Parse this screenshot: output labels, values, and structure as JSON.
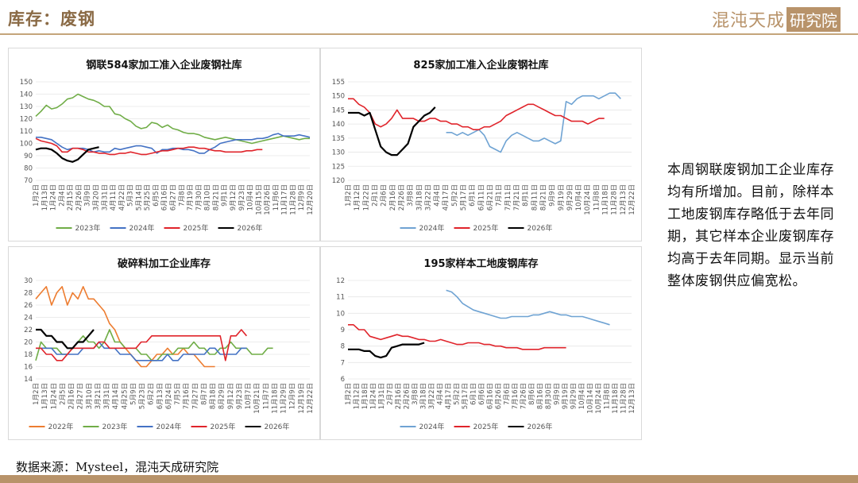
{
  "header": {
    "title": "库存：废钢",
    "logo_main": "混沌天成",
    "logo_box": "研究院"
  },
  "side_text": "本周钢联废钢加工企业库存均有所增加。目前，除样本工地废钢库存略低于去年同期，其它样本企业废钢库存均高于去年同期。显示当前整体废钢供应偏宽松。",
  "source": "数据来源：Mysteel，混沌天成研究院",
  "colors": {
    "accent": "#b8936a",
    "y2022": "#ed7d31",
    "y2023": "#70ad47",
    "y2024": "#4472c4",
    "y2025": "#e0242b",
    "y2026": "#000000",
    "blue_light": "#6fa3d3"
  },
  "chart_data": [
    {
      "type": "line",
      "title": "钢联584家加工准入企业废钢社库",
      "ylim": [
        70,
        150
      ],
      "yticks": [
        70,
        80,
        90,
        100,
        110,
        120,
        130,
        140,
        150
      ],
      "xticks": [
        "1月2日",
        "1月13日",
        "1月24日",
        "2月4日",
        "2月15日",
        "2月26日",
        "3月9日",
        "3月20日",
        "3月31日",
        "4月11日",
        "4月22日",
        "5月3日",
        "5月14日",
        "5月25日",
        "6月5日",
        "6月16日",
        "6月27日",
        "7月8日",
        "7月19日",
        "7月30日",
        "8月10日",
        "8月21日",
        "9月1日",
        "9月12日",
        "9月23日",
        "10月4日",
        "10月15日",
        "10月26日",
        "11月6日",
        "11月17日",
        "11月28日",
        "12月9日",
        "12月20日"
      ],
      "x_span": 53,
      "series": [
        {
          "name": "2023年",
          "color": "#70ad47",
          "values": [
            122,
            126,
            131,
            128,
            129,
            132,
            136,
            137,
            140,
            138,
            136,
            135,
            133,
            130,
            130,
            124,
            123,
            120,
            118,
            114,
            112,
            113,
            117,
            116,
            113,
            115,
            112,
            111,
            109,
            108,
            108,
            107,
            105,
            104,
            103,
            104,
            105,
            104,
            103,
            102,
            101,
            100,
            101,
            102,
            103,
            104,
            105,
            106,
            105,
            104,
            103,
            104,
            104
          ]
        },
        {
          "name": "2024年",
          "color": "#4472c4",
          "values": [
            105,
            105,
            104,
            103,
            100,
            97,
            95,
            96,
            96,
            96,
            95,
            93,
            94,
            93,
            93,
            96,
            95,
            96,
            97,
            98,
            98,
            97,
            96,
            92,
            95,
            95,
            96,
            96,
            95,
            95,
            94,
            92,
            92,
            95,
            97,
            100,
            101,
            102,
            103,
            103,
            103,
            103,
            104,
            104,
            105,
            107,
            108,
            106,
            106,
            106,
            107,
            106,
            105
          ]
        },
        {
          "name": "2025年",
          "color": "#e0242b",
          "values": [
            104,
            102,
            101,
            100,
            98,
            93,
            93,
            96,
            96,
            95,
            93,
            93,
            92,
            92,
            91,
            91,
            92,
            92,
            93,
            92,
            91,
            91,
            92,
            93,
            94,
            94,
            95,
            96,
            96,
            97,
            97,
            96,
            96,
            95,
            94,
            94,
            93,
            93,
            93,
            93,
            94,
            94,
            95,
            95
          ]
        },
        {
          "name": "2026年",
          "color": "#000000",
          "values": [
            95,
            96,
            96,
            95,
            92,
            88,
            86,
            85,
            87,
            91,
            95,
            96,
            97
          ]
        }
      ]
    },
    {
      "type": "line",
      "title": "825家加工准入企业废钢社库",
      "ylim": [
        120,
        155
      ],
      "yticks": [
        120,
        125,
        130,
        135,
        140,
        145,
        150,
        155
      ],
      "xticks": [
        "1月2日",
        "1月12日",
        "1月22日",
        "2月1日",
        "2月6日",
        "2月16日",
        "2月26日",
        "3月8日",
        "3月18日",
        "3月22日",
        "4月4日",
        "4月17日",
        "5月2日",
        "5月17日",
        "6月1日",
        "6月11日",
        "6月21日",
        "7月1日",
        "7月11日",
        "7月21日",
        "8月1日",
        "8月11日",
        "8月21日",
        "9月9日",
        "9月19日",
        "9月29日",
        "10月4日",
        "10月24日",
        "11月8日",
        "11月18日",
        "11月28日",
        "12月13日",
        "12月22日"
      ],
      "x_span": 53,
      "series": [
        {
          "name": "2024年",
          "color": "#6fa3d3",
          "values": [
            null,
            null,
            null,
            null,
            null,
            null,
            null,
            null,
            null,
            null,
            null,
            null,
            null,
            null,
            null,
            null,
            null,
            null,
            137,
            137,
            136,
            137,
            136,
            137,
            138,
            136,
            132,
            131,
            130,
            134,
            136,
            137,
            136,
            135,
            134,
            134,
            135,
            134,
            133,
            134,
            148,
            147,
            149,
            150,
            150,
            150,
            149,
            150,
            151,
            151,
            149
          ]
        },
        {
          "name": "2025年",
          "color": "#e0242b",
          "values": [
            149,
            149,
            147,
            146,
            144,
            140,
            139,
            140,
            142,
            145,
            142,
            142,
            142,
            141,
            141,
            142,
            142,
            141,
            141,
            140,
            140,
            139,
            139,
            138,
            138,
            139,
            139,
            140,
            141,
            143,
            144,
            145,
            146,
            147,
            147,
            146,
            145,
            144,
            143,
            143,
            142,
            141,
            141,
            141,
            140,
            141,
            142,
            142
          ]
        },
        {
          "name": "2026年",
          "color": "#000000",
          "values": [
            144,
            144,
            144,
            143,
            144,
            138,
            132,
            130,
            129,
            129,
            131,
            133,
            139,
            141,
            143,
            144,
            146
          ]
        }
      ]
    },
    {
      "type": "line",
      "title": "破碎料加工企业库存",
      "ylim": [
        14,
        30
      ],
      "yticks": [
        14,
        16,
        18,
        20,
        22,
        24,
        26,
        28,
        30
      ],
      "xticks": [
        "1月2日",
        "1月13日",
        "1月24日",
        "2月5日",
        "2月16日",
        "2月27日",
        "3月10日",
        "3月21日",
        "3月31日",
        "4月14日",
        "4月25日",
        "5月9日",
        "5月23日",
        "6月2日",
        "6月13日",
        "6月24日",
        "7月5日",
        "7月16日",
        "7月27日",
        "8月7日",
        "8月18日",
        "8月29日",
        "9月12日",
        "9月23日",
        "10月7日",
        "10月21日",
        "11月7日",
        "11月18日",
        "11月29日",
        "12月9日",
        "12月19日",
        "12月22日"
      ],
      "x_span": 53,
      "series": [
        {
          "name": "2022年",
          "color": "#ed7d31",
          "values": [
            27,
            28,
            29,
            26,
            28,
            29,
            26,
            28,
            27,
            29,
            27,
            27,
            26,
            25,
            23,
            22,
            20,
            19,
            18,
            17,
            16,
            16,
            17,
            18,
            18,
            19,
            18,
            18,
            19,
            18,
            18,
            17,
            16,
            16,
            16
          ]
        },
        {
          "name": "2023年",
          "color": "#70ad47",
          "values": [
            17,
            20,
            19,
            19,
            19,
            18,
            18,
            19,
            20,
            21,
            20,
            20,
            19,
            20,
            22,
            20,
            20,
            19,
            19,
            19,
            18,
            18,
            17,
            17,
            18,
            18,
            18,
            19,
            19,
            19,
            20,
            19,
            19,
            18,
            18,
            19,
            19,
            20,
            19,
            19,
            19,
            18,
            18,
            18,
            19,
            19
          ]
        },
        {
          "name": "2024年",
          "color": "#4472c4",
          "values": [
            19,
            19,
            19,
            19,
            18,
            18,
            18,
            18,
            18,
            19,
            19,
            19,
            20,
            19,
            19,
            19,
            18,
            18,
            18,
            17,
            17,
            17,
            17,
            17,
            17,
            18,
            17,
            17,
            18,
            18,
            18,
            18,
            18,
            19,
            19,
            18,
            18,
            18,
            18,
            19,
            19
          ]
        },
        {
          "name": "2025年",
          "color": "#e0242b",
          "values": [
            19,
            19,
            18,
            18,
            17,
            17,
            18,
            19,
            19,
            19,
            19,
            19,
            20,
            20,
            19,
            19,
            19,
            19,
            19,
            19,
            20,
            20,
            21,
            21,
            21,
            21,
            21,
            21,
            21,
            21,
            21,
            21,
            21,
            21,
            21,
            21,
            17,
            21,
            21,
            22,
            21
          ]
        },
        {
          "name": "2026年",
          "color": "#000000",
          "values": [
            22,
            22,
            21,
            21,
            20,
            20,
            19,
            19,
            20,
            20,
            21,
            22
          ]
        }
      ]
    },
    {
      "type": "line",
      "title": "195家样本工地废钢库存",
      "ylim": [
        6,
        12
      ],
      "yticks": [
        6,
        7,
        8,
        9,
        10,
        11,
        12
      ],
      "xticks": [
        "1月2日",
        "1月12日",
        "1月18日",
        "1月24日",
        "1月31日",
        "2月7日",
        "2月16日",
        "2月26日",
        "3月8日",
        "3月18日",
        "3月22日",
        "4月4日",
        "4月17日",
        "5月2日",
        "5月17日",
        "6月1日",
        "6月6日",
        "6月16日",
        "6月26日",
        "7月6日",
        "7月16日",
        "7月26日",
        "8月6日",
        "8月16日",
        "8月30日",
        "9月9日",
        "9月19日",
        "9月29日",
        "10月4日",
        "10月14日",
        "10月24日",
        "11月8日",
        "11月18日",
        "11月28日",
        "12月13日"
      ],
      "x_span": 53,
      "series": [
        {
          "name": "2024年",
          "color": "#6fa3d3",
          "values": [
            null,
            null,
            null,
            null,
            null,
            null,
            null,
            null,
            null,
            null,
            null,
            null,
            null,
            null,
            null,
            null,
            null,
            null,
            11.4,
            11.3,
            11,
            10.6,
            10.4,
            10.2,
            10.1,
            10,
            9.9,
            9.8,
            9.7,
            9.7,
            9.8,
            9.8,
            9.8,
            9.8,
            9.9,
            9.9,
            10,
            10.1,
            10,
            9.9,
            9.9,
            9.8,
            9.8,
            9.8,
            9.7,
            9.6,
            9.5,
            9.4,
            9.3
          ]
        },
        {
          "name": "2025年",
          "color": "#e0242b",
          "values": [
            9.3,
            9.3,
            9,
            9,
            8.6,
            8.5,
            8.4,
            8.5,
            8.6,
            8.7,
            8.6,
            8.6,
            8.5,
            8.4,
            8.4,
            8.3,
            8.3,
            8.4,
            8.3,
            8.2,
            8.1,
            8.1,
            8.2,
            8.2,
            8.2,
            8.1,
            8.1,
            8,
            8,
            7.9,
            7.9,
            7.9,
            7.8,
            7.8,
            7.8,
            7.8,
            7.9,
            7.9,
            7.9,
            7.9,
            7.9
          ]
        },
        {
          "name": "2026年",
          "color": "#000000",
          "values": [
            7.8,
            7.8,
            7.8,
            7.7,
            7.7,
            7.4,
            7.3,
            7.4,
            7.9,
            8,
            8.1,
            8.1,
            8.1,
            8.1,
            8.2
          ]
        }
      ]
    }
  ]
}
